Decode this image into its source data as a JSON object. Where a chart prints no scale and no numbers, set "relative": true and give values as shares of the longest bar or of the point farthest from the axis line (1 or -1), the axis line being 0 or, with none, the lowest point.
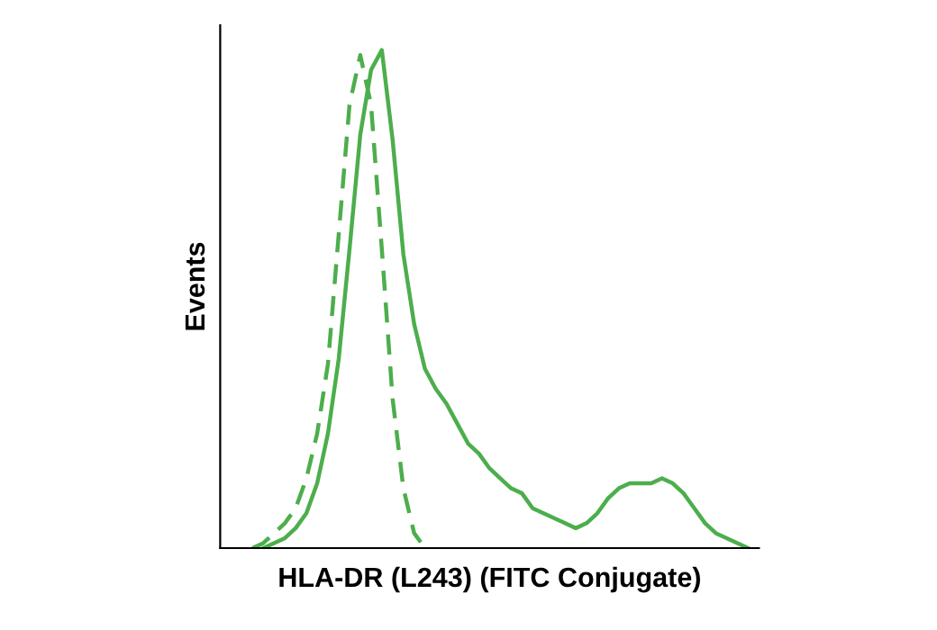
{
  "chart_data": {
    "type": "line",
    "relative": true,
    "xlabel": "HLA-DR (L243) (FITC Conjugate)",
    "ylabel": "Events",
    "categories": [
      null,
      null,
      null,
      null,
      null,
      null,
      null,
      null,
      null,
      null,
      null,
      null,
      null,
      null,
      null,
      null,
      null,
      null,
      null,
      null,
      null,
      null,
      null,
      null,
      null,
      null,
      null,
      null,
      null,
      null,
      null,
      null,
      null,
      null,
      null,
      null,
      null,
      null,
      null,
      null,
      null,
      null,
      null,
      null,
      null,
      null,
      null
    ],
    "series": [
      {
        "color": "#4cae4c",
        "line_style": "solid",
        "values": [
          null,
          0.0,
          0.01,
          0.02,
          0.04,
          0.07,
          0.13,
          0.23,
          0.38,
          0.6,
          0.83,
          0.96,
          1.0,
          0.82,
          0.59,
          0.45,
          0.36,
          0.32,
          0.29,
          0.25,
          0.21,
          0.19,
          0.16,
          0.14,
          0.12,
          0.11,
          0.08,
          0.07,
          0.06,
          0.05,
          0.04,
          0.05,
          0.07,
          0.1,
          0.12,
          0.13,
          0.13,
          0.13,
          0.14,
          0.13,
          0.11,
          0.08,
          0.05,
          0.03,
          0.02,
          0.01,
          0.0
        ]
      },
      {
        "color": "#4cae4c",
        "line_style": "dashed",
        "values": [
          0.0,
          0.01,
          0.03,
          0.05,
          0.08,
          0.14,
          0.23,
          0.37,
          0.63,
          0.89,
          0.99,
          0.89,
          0.6,
          0.3,
          0.12,
          0.03,
          0.0,
          null,
          null,
          null,
          null,
          null,
          null,
          null,
          null,
          null,
          null,
          null,
          null,
          null,
          null,
          null,
          null,
          null,
          null,
          null,
          null,
          null,
          null,
          null,
          null,
          null,
          null,
          null,
          null,
          null,
          null
        ]
      }
    ],
    "grid": false,
    "legend": false
  }
}
